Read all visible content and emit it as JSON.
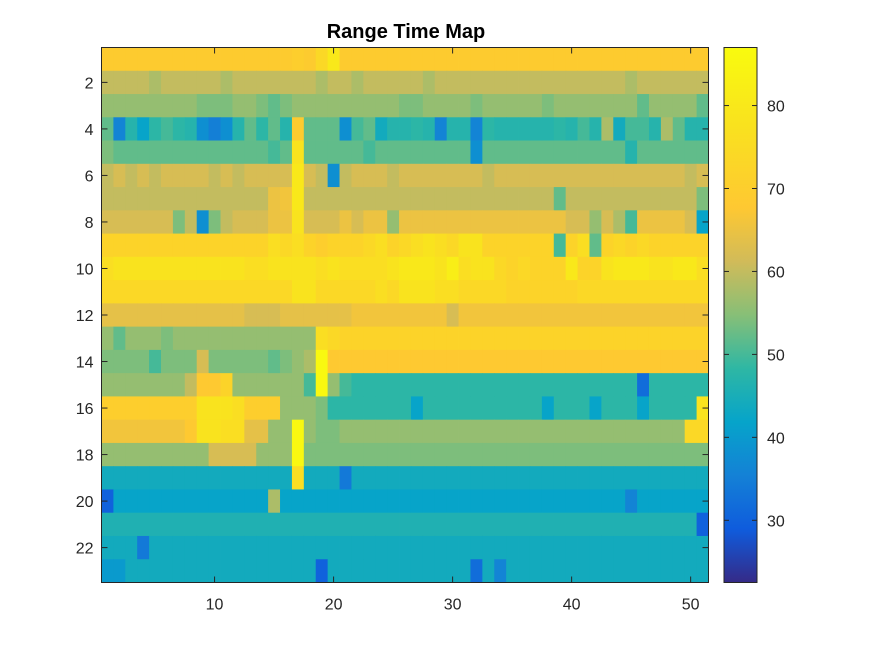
{
  "chart_data": {
    "type": "heatmap",
    "title": "Range Time Map",
    "xlabel": "",
    "ylabel": "",
    "colormap": "parula",
    "xlim": [
      0.5,
      51.5
    ],
    "ylim": [
      0.5,
      23.5
    ],
    "y_direction": "reverse",
    "x_ticks": [
      10,
      20,
      30,
      40,
      50
    ],
    "y_ticks": [
      2,
      4,
      6,
      8,
      10,
      12,
      14,
      16,
      18,
      20,
      22
    ],
    "color_limits": [
      22.5,
      87
    ],
    "colorbar_ticks": [
      30,
      40,
      50,
      60,
      70,
      80
    ],
    "colorbar_location": "right",
    "grid": false,
    "rows": 23,
    "cols": 51,
    "values": [
      [
        69,
        69,
        69,
        69,
        69,
        69,
        69,
        69,
        69,
        69,
        69,
        69,
        69,
        69,
        69,
        69,
        70,
        69,
        74,
        80,
        69,
        69,
        69,
        69,
        69,
        69,
        69,
        69,
        69,
        69,
        69,
        69,
        69,
        69,
        69,
        69,
        69,
        69,
        69,
        69,
        69,
        69,
        69,
        69,
        69,
        69,
        69,
        69,
        69,
        69,
        69
      ],
      [
        60,
        60,
        60,
        60,
        58,
        60,
        60,
        60,
        60,
        60,
        58,
        60,
        60,
        60,
        60,
        60,
        60,
        60,
        58,
        60,
        60,
        58,
        60,
        60,
        60,
        60,
        60,
        58,
        60,
        60,
        60,
        60,
        60,
        60,
        60,
        60,
        60,
        60,
        60,
        60,
        60,
        60,
        60,
        60,
        58,
        60,
        60,
        60,
        60,
        60,
        60
      ],
      [
        56,
        56,
        56,
        56,
        56,
        56,
        56,
        56,
        54,
        54,
        54,
        56,
        56,
        54,
        52,
        54,
        56,
        56,
        56,
        56,
        56,
        56,
        56,
        56,
        56,
        54,
        54,
        56,
        56,
        56,
        56,
        54,
        56,
        56,
        56,
        56,
        56,
        54,
        56,
        56,
        56,
        56,
        56,
        56,
        56,
        52,
        56,
        56,
        56,
        56,
        52
      ],
      [
        52,
        36,
        47,
        42,
        48,
        50,
        48,
        47,
        38,
        35,
        38,
        47,
        52,
        48,
        52,
        47,
        69,
        52,
        52,
        52,
        38,
        50,
        52,
        44,
        47,
        47,
        48,
        47,
        36,
        47,
        47,
        36,
        48,
        47,
        47,
        47,
        47,
        47,
        48,
        47,
        50,
        47,
        58,
        44,
        50,
        50,
        47,
        58,
        52,
        47,
        47
      ],
      [
        54,
        52,
        52,
        52,
        52,
        52,
        52,
        52,
        52,
        52,
        52,
        52,
        52,
        52,
        50,
        52,
        78,
        52,
        52,
        52,
        52,
        52,
        50,
        52,
        52,
        52,
        52,
        52,
        52,
        52,
        52,
        38,
        52,
        52,
        52,
        52,
        52,
        52,
        52,
        52,
        52,
        52,
        52,
        52,
        47,
        52,
        52,
        52,
        52,
        52,
        52
      ],
      [
        60,
        62,
        60,
        62,
        60,
        62,
        62,
        62,
        62,
        60,
        62,
        60,
        62,
        62,
        62,
        62,
        80,
        62,
        60,
        38,
        60,
        62,
        62,
        62,
        60,
        62,
        62,
        62,
        62,
        62,
        62,
        62,
        60,
        62,
        62,
        62,
        62,
        62,
        62,
        62,
        62,
        62,
        62,
        62,
        62,
        62,
        62,
        62,
        62,
        60,
        62
      ],
      [
        60,
        60,
        60,
        60,
        60,
        60,
        60,
        60,
        60,
        60,
        60,
        60,
        60,
        60,
        65,
        66,
        80,
        60,
        60,
        60,
        60,
        60,
        60,
        60,
        60,
        60,
        60,
        60,
        60,
        60,
        60,
        60,
        60,
        60,
        60,
        60,
        60,
        60,
        52,
        60,
        60,
        60,
        60,
        60,
        60,
        60,
        60,
        60,
        60,
        60,
        54
      ],
      [
        62,
        62,
        62,
        62,
        62,
        62,
        54,
        60,
        38,
        54,
        60,
        62,
        62,
        62,
        65,
        65,
        78,
        62,
        62,
        62,
        65,
        62,
        65,
        65,
        56,
        65,
        65,
        65,
        65,
        65,
        65,
        65,
        65,
        65,
        65,
        65,
        65,
        65,
        65,
        62,
        62,
        56,
        62,
        58,
        50,
        65,
        65,
        65,
        65,
        62,
        42
      ],
      [
        72,
        72,
        72,
        72,
        72,
        72,
        72,
        72,
        72,
        72,
        72,
        72,
        72,
        72,
        76,
        74,
        76,
        72,
        70,
        72,
        72,
        72,
        74,
        76,
        72,
        74,
        76,
        78,
        76,
        74,
        78,
        78,
        72,
        72,
        72,
        72,
        72,
        72,
        50,
        72,
        76,
        52,
        72,
        74,
        72,
        74,
        72,
        72,
        72,
        72,
        72
      ],
      [
        76,
        78,
        78,
        78,
        78,
        78,
        78,
        78,
        78,
        78,
        78,
        78,
        76,
        76,
        78,
        78,
        78,
        78,
        76,
        78,
        76,
        76,
        76,
        76,
        78,
        80,
        80,
        80,
        78,
        82,
        76,
        78,
        78,
        74,
        72,
        74,
        72,
        72,
        72,
        80,
        72,
        72,
        78,
        80,
        80,
        80,
        78,
        78,
        80,
        80,
        76
      ],
      [
        74,
        74,
        74,
        74,
        74,
        74,
        74,
        74,
        74,
        74,
        74,
        74,
        74,
        74,
        74,
        74,
        78,
        78,
        74,
        74,
        74,
        74,
        74,
        76,
        74,
        78,
        78,
        78,
        76,
        76,
        74,
        74,
        74,
        74,
        72,
        72,
        72,
        72,
        72,
        72,
        74,
        74,
        74,
        74,
        74,
        74,
        74,
        74,
        74,
        74,
        74
      ],
      [
        64,
        64,
        64,
        64,
        64,
        64,
        64,
        64,
        64,
        64,
        64,
        64,
        62,
        62,
        62,
        64,
        64,
        64,
        64,
        64,
        64,
        66,
        66,
        66,
        66,
        66,
        66,
        66,
        66,
        62,
        66,
        66,
        66,
        66,
        66,
        66,
        66,
        66,
        66,
        66,
        66,
        66,
        66,
        66,
        66,
        66,
        66,
        66,
        66,
        66,
        66
      ],
      [
        56,
        52,
        56,
        56,
        56,
        54,
        56,
        56,
        56,
        56,
        56,
        56,
        56,
        56,
        56,
        56,
        56,
        56,
        76,
        74,
        72,
        72,
        72,
        72,
        72,
        72,
        72,
        72,
        72,
        72,
        72,
        72,
        72,
        72,
        72,
        72,
        72,
        72,
        72,
        72,
        72,
        72,
        72,
        72,
        72,
        72,
        72,
        72,
        72,
        72,
        72
      ],
      [
        54,
        54,
        54,
        54,
        50,
        54,
        54,
        54,
        62,
        54,
        54,
        54,
        54,
        54,
        52,
        54,
        56,
        58,
        86,
        68,
        68,
        68,
        68,
        68,
        68,
        68,
        68,
        68,
        68,
        68,
        68,
        68,
        68,
        68,
        68,
        68,
        68,
        68,
        68,
        68,
        68,
        68,
        68,
        68,
        68,
        68,
        68,
        68,
        68,
        68,
        68
      ],
      [
        56,
        56,
        56,
        56,
        56,
        56,
        56,
        60,
        68,
        68,
        72,
        56,
        56,
        56,
        56,
        56,
        56,
        50,
        86,
        56,
        50,
        48,
        48,
        48,
        48,
        48,
        48,
        48,
        48,
        48,
        48,
        48,
        48,
        48,
        48,
        48,
        48,
        48,
        48,
        48,
        48,
        48,
        48,
        48,
        48,
        32,
        48,
        48,
        48,
        48,
        48
      ],
      [
        70,
        70,
        70,
        70,
        70,
        70,
        70,
        70,
        78,
        78,
        78,
        76,
        70,
        70,
        70,
        56,
        56,
        56,
        54,
        48,
        48,
        48,
        48,
        48,
        48,
        48,
        42,
        48,
        48,
        48,
        48,
        48,
        48,
        48,
        48,
        48,
        48,
        42,
        48,
        48,
        48,
        42,
        48,
        48,
        48,
        42,
        48,
        48,
        48,
        48,
        78
      ],
      [
        66,
        66,
        66,
        66,
        66,
        66,
        66,
        68,
        78,
        78,
        76,
        76,
        64,
        64,
        56,
        56,
        86,
        56,
        54,
        54,
        56,
        56,
        56,
        56,
        56,
        56,
        56,
        56,
        56,
        56,
        56,
        56,
        56,
        56,
        56,
        56,
        56,
        56,
        56,
        56,
        56,
        56,
        56,
        56,
        56,
        56,
        56,
        56,
        56,
        74,
        74
      ],
      [
        56,
        56,
        56,
        56,
        56,
        56,
        56,
        56,
        56,
        62,
        62,
        62,
        62,
        56,
        56,
        56,
        86,
        54,
        54,
        54,
        54,
        54,
        54,
        54,
        54,
        54,
        54,
        54,
        54,
        54,
        54,
        54,
        54,
        54,
        54,
        54,
        54,
        54,
        54,
        54,
        54,
        54,
        54,
        54,
        54,
        54,
        54,
        54,
        54,
        54,
        54
      ],
      [
        44,
        44,
        44,
        44,
        44,
        44,
        44,
        44,
        44,
        44,
        44,
        44,
        44,
        44,
        44,
        44,
        76,
        44,
        44,
        44,
        34,
        44,
        44,
        44,
        44,
        44,
        44,
        44,
        44,
        44,
        44,
        44,
        44,
        44,
        44,
        44,
        44,
        44,
        44,
        44,
        44,
        44,
        44,
        44,
        44,
        44,
        44,
        44,
        44,
        44,
        44
      ],
      [
        30,
        42,
        42,
        42,
        42,
        42,
        42,
        42,
        42,
        42,
        42,
        42,
        42,
        42,
        58,
        42,
        42,
        42,
        42,
        42,
        42,
        42,
        42,
        42,
        42,
        42,
        42,
        42,
        42,
        42,
        42,
        42,
        42,
        42,
        42,
        42,
        42,
        42,
        42,
        42,
        42,
        42,
        42,
        42,
        36,
        42,
        42,
        42,
        42,
        42,
        42
      ],
      [
        46,
        46,
        46,
        46,
        46,
        46,
        46,
        46,
        46,
        46,
        46,
        46,
        46,
        46,
        46,
        46,
        46,
        46,
        46,
        46,
        46,
        46,
        46,
        46,
        46,
        46,
        46,
        46,
        46,
        46,
        46,
        46,
        46,
        46,
        46,
        46,
        46,
        46,
        46,
        46,
        46,
        46,
        46,
        46,
        46,
        46,
        46,
        46,
        46,
        46,
        30
      ],
      [
        44,
        44,
        44,
        34,
        44,
        44,
        44,
        44,
        44,
        44,
        44,
        44,
        44,
        44,
        44,
        44,
        44,
        44,
        44,
        44,
        44,
        44,
        44,
        44,
        44,
        44,
        44,
        44,
        44,
        44,
        44,
        44,
        44,
        44,
        44,
        44,
        44,
        44,
        44,
        44,
        44,
        44,
        44,
        44,
        44,
        44,
        44,
        44,
        44,
        44,
        44
      ],
      [
        40,
        40,
        44,
        44,
        44,
        44,
        44,
        44,
        44,
        44,
        44,
        44,
        44,
        44,
        44,
        44,
        44,
        44,
        30,
        44,
        44,
        44,
        44,
        44,
        44,
        44,
        44,
        44,
        44,
        44,
        44,
        32,
        44,
        36,
        44,
        44,
        44,
        44,
        44,
        44,
        44,
        44,
        44,
        44,
        44,
        44,
        44,
        44,
        44,
        44,
        44
      ]
    ]
  }
}
